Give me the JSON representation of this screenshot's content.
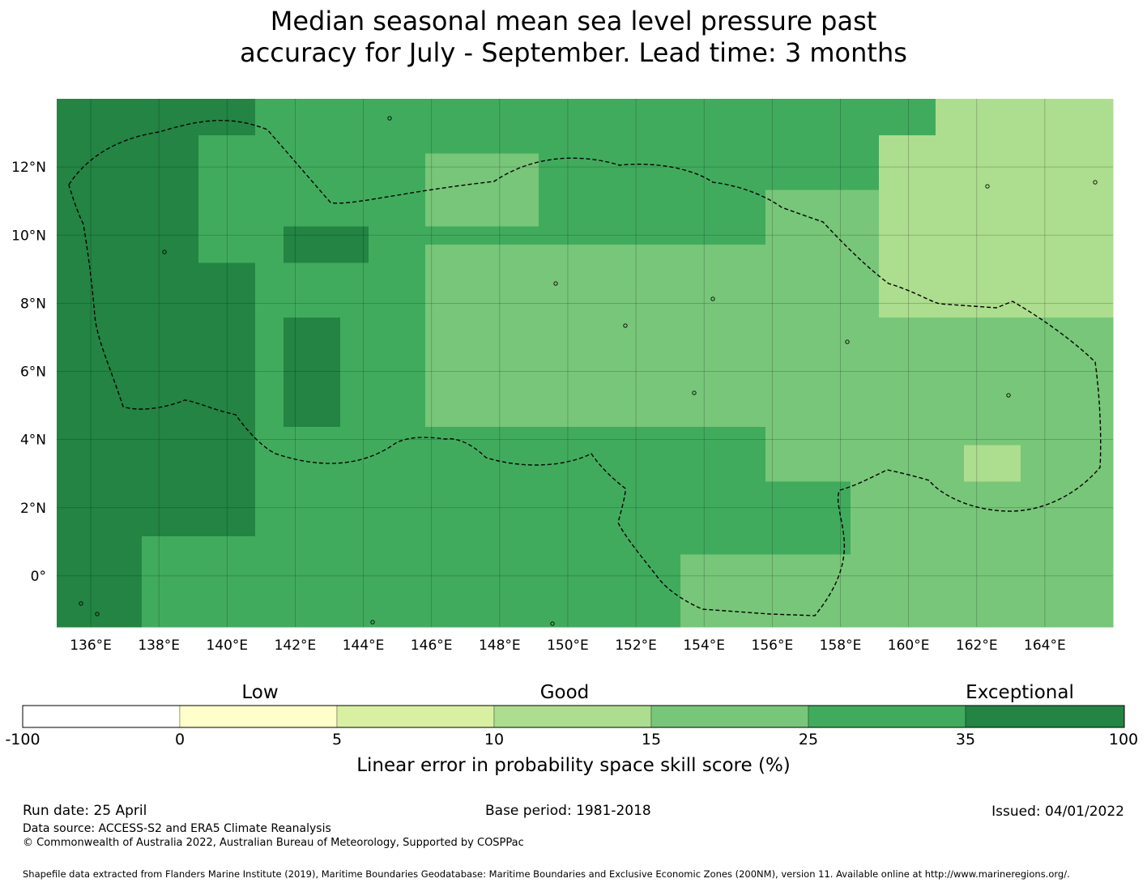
{
  "title": {
    "line1": "Median seasonal mean sea level pressure past",
    "line2": "accuracy for July - September. Lead time: 3 months"
  },
  "map": {
    "lon_labels": [
      "136°E",
      "138°E",
      "140°E",
      "142°E",
      "144°E",
      "146°E",
      "148°E",
      "150°E",
      "152°E",
      "154°E",
      "156°E",
      "158°E",
      "160°E",
      "162°E",
      "164°E"
    ],
    "lon_values": [
      136,
      138,
      140,
      142,
      144,
      146,
      148,
      150,
      152,
      154,
      156,
      158,
      160,
      162,
      164
    ],
    "lat_labels": [
      "12°N",
      "10°N",
      "8°N",
      "6°N",
      "4°N",
      "2°N",
      "0°"
    ],
    "lat_values": [
      12,
      10,
      8,
      6,
      4,
      2,
      0
    ],
    "lon_range": [
      135,
      166
    ],
    "lat_range": [
      -1.5,
      14
    ],
    "category_colors": [
      "#ffffff",
      "#ffffcc",
      "#d9f0a3",
      "#addd8e",
      "#78c679",
      "#41ab5d",
      "#238443"
    ],
    "grid_lines": true,
    "boundary_style": "dashed"
  },
  "colorbar": {
    "words": [
      "Low",
      "Good",
      "Exceptional"
    ],
    "ticks": [
      "-100",
      "0",
      "5",
      "10",
      "15",
      "25",
      "35",
      "100"
    ],
    "label": "Linear error in probability space skill score (%)"
  },
  "footer": {
    "run_date": "Run date: 25 April",
    "base_period": "Base period: 1981-2018",
    "issued": "Issued: 04/01/2022",
    "data_source": "Data source: ACCESS-S2 and ERA5 Climate Reanalysis",
    "copyright": "© Commonwealth of Australia 2022, Australian Bureau of Meteorology, Supported by COSPPac",
    "shapefile": "Shapefile data extracted from Flanders Marine Institute (2019), Maritime Boundaries Geodatabase: Maritime Boundaries and Exclusive Economic Zones (200NM), version 11. Available online at http://www.marineregions.org/."
  }
}
